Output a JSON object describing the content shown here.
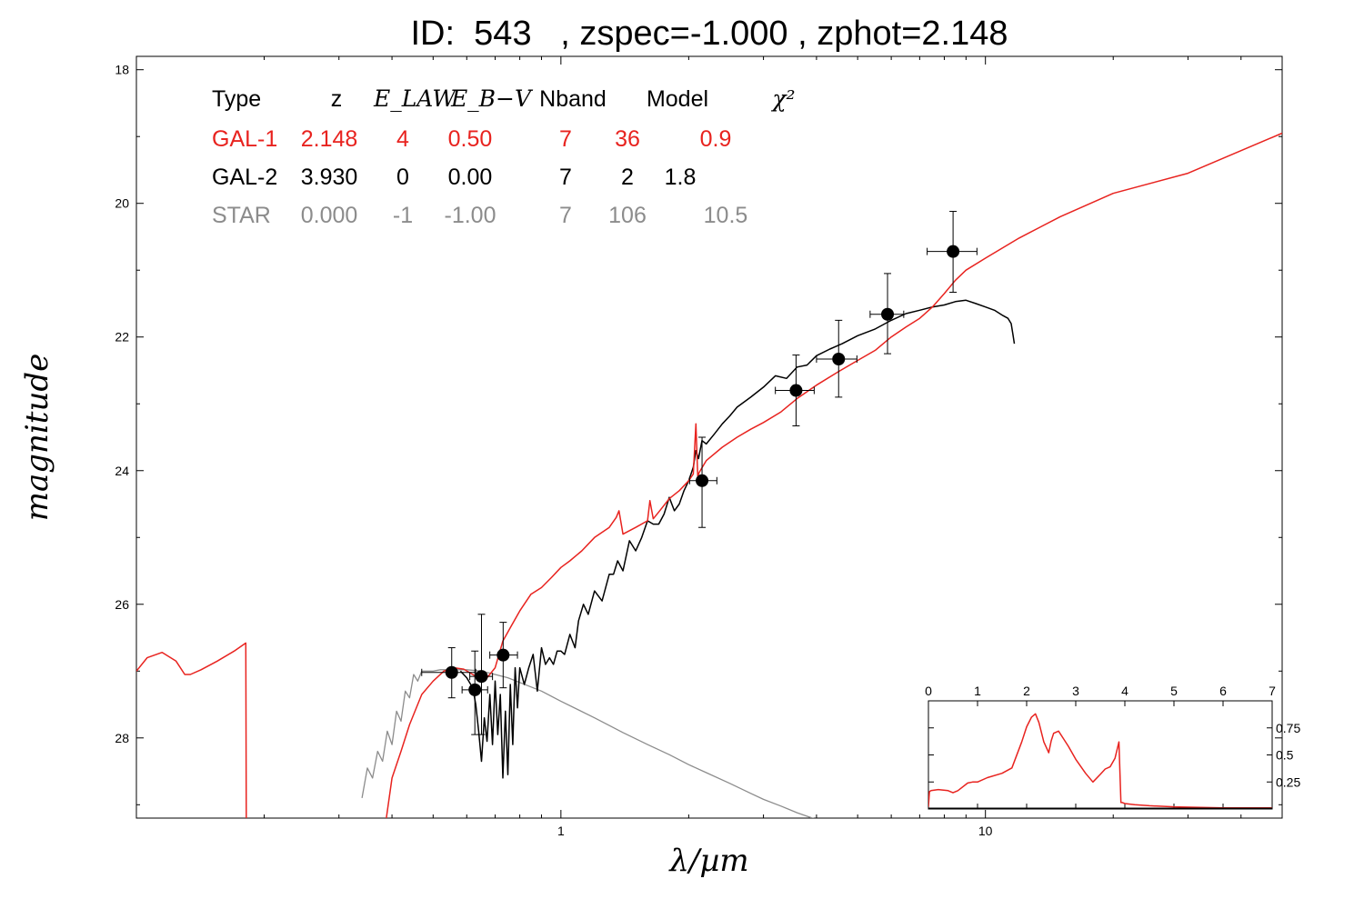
{
  "chart_data": [
    {
      "type": "line",
      "title": "ID:  543   , zspec=-1.000 , zphot=2.148",
      "xlabel": "λ/µm",
      "ylabel": "magnitude",
      "x_scale": "log",
      "xlim": [
        0.1,
        50
      ],
      "ylim": [
        29.2,
        17.8
      ],
      "x_ticks": [
        {
          "value": 1,
          "label": "1"
        },
        {
          "value": 10,
          "label": "10"
        }
      ],
      "y_ticks": [
        {
          "value": 18,
          "label": "18"
        },
        {
          "value": 20,
          "label": "20"
        },
        {
          "value": 22,
          "label": "22"
        },
        {
          "value": 24,
          "label": "24"
        },
        {
          "value": 26,
          "label": "26"
        },
        {
          "value": 28,
          "label": "28"
        }
      ],
      "colors": {
        "gal1": "#e8231f",
        "gal2": "#000000",
        "star": "#8c8c8c"
      },
      "legend": {
        "placement": "top-left",
        "headers": [
          "Type",
          "z",
          "E_LAW",
          "E_B−V",
          "Nband",
          "Model",
          "χ²"
        ],
        "rows": [
          {
            "color": "#e8231f",
            "cells": [
              "GAL-1",
              "2.148",
              "4",
              "0.50",
              "7",
              "36",
              "0.9"
            ]
          },
          {
            "color": "#000000",
            "cells": [
              "GAL-2",
              "3.930",
              "0",
              "0.00",
              "7",
              "2",
              "1.8"
            ]
          },
          {
            "color": "#8c8c8c",
            "cells": [
              "STAR",
              "0.000",
              "-1",
              "-1.00",
              "7",
              "106",
              "10.5"
            ]
          }
        ]
      },
      "points": [
        {
          "x": 0.553,
          "y": 27.02,
          "xerr": [
            0.47,
            0.63
          ],
          "yerr": [
            26.65,
            27.4
          ]
        },
        {
          "x": 0.627,
          "y": 27.28,
          "xerr": [
            0.585,
            0.672
          ],
          "yerr": [
            26.7,
            27.95
          ]
        },
        {
          "x": 0.65,
          "y": 27.08,
          "xerr": [
            0.61,
            0.69
          ],
          "yerr": [
            26.15,
            27.95
          ]
        },
        {
          "x": 0.731,
          "y": 26.76,
          "xerr": [
            0.68,
            0.79
          ],
          "yerr": [
            26.27,
            27.25
          ]
        },
        {
          "x": 2.15,
          "y": 24.15,
          "xerr": [
            2.01,
            2.33
          ],
          "yerr": [
            23.5,
            24.85
          ]
        },
        {
          "x": 3.58,
          "y": 22.8,
          "xerr": [
            3.2,
            3.95
          ],
          "yerr": [
            22.27,
            23.33
          ]
        },
        {
          "x": 4.51,
          "y": 22.33,
          "xerr": [
            4.0,
            4.98
          ],
          "yerr": [
            21.75,
            22.9
          ]
        },
        {
          "x": 5.88,
          "y": 21.66,
          "xerr": [
            5.35,
            6.42
          ],
          "yerr": [
            21.05,
            22.25
          ]
        },
        {
          "x": 8.39,
          "y": 20.72,
          "xerr": [
            7.29,
            9.55
          ],
          "yerr": [
            20.12,
            21.33
          ]
        }
      ],
      "series": [
        {
          "name": "GAL-1",
          "color": "#e8231f",
          "x": [
            0.1,
            0.106,
            0.115,
            0.124,
            0.13,
            0.134,
            0.142,
            0.155,
            0.17,
            0.181,
            0.1815,
            0.182,
            0.38,
            0.4,
            0.42,
            0.44,
            0.47,
            0.5,
            0.53,
            0.56,
            0.59,
            0.62,
            0.66,
            0.7,
            0.73,
            0.76,
            0.8,
            0.85,
            0.9,
            0.95,
            1.0,
            1.05,
            1.12,
            1.2,
            1.3,
            1.35,
            1.37,
            1.4,
            1.5,
            1.6,
            1.62,
            1.65,
            1.7,
            1.8,
            1.9,
            2.0,
            2.05,
            2.08,
            2.1,
            2.12,
            2.2,
            2.4,
            2.6,
            2.8,
            3.0,
            3.3,
            3.6,
            4.0,
            4.5,
            5.0,
            5.5,
            6.0,
            6.5,
            7.0,
            7.5,
            8.0,
            8.5,
            9.0,
            10.0,
            12.0,
            15.0,
            20.0,
            30.0,
            50.0
          ],
          "y": [
            27.0,
            26.8,
            26.72,
            26.85,
            27.05,
            27.05,
            26.98,
            26.85,
            26.7,
            26.58,
            29.5,
            29.8,
            29.6,
            28.6,
            28.2,
            27.8,
            27.35,
            27.15,
            27.0,
            26.95,
            26.97,
            27.05,
            27.15,
            26.95,
            26.55,
            26.35,
            26.1,
            25.85,
            25.75,
            25.6,
            25.45,
            25.35,
            25.2,
            25.0,
            24.85,
            24.7,
            24.6,
            24.95,
            24.85,
            24.75,
            24.45,
            24.72,
            24.62,
            24.42,
            24.3,
            24.15,
            24.05,
            23.3,
            24.08,
            24.02,
            23.85,
            23.65,
            23.5,
            23.38,
            23.28,
            23.12,
            22.92,
            22.72,
            22.52,
            22.35,
            22.2,
            22.0,
            21.85,
            21.72,
            21.55,
            21.35,
            21.15,
            21.0,
            20.82,
            20.52,
            20.2,
            19.85,
            19.55,
            18.95
          ]
        },
        {
          "name": "GAL-2",
          "color": "#000000",
          "x": [
            0.58,
            0.6,
            0.62,
            0.63,
            0.64,
            0.65,
            0.66,
            0.67,
            0.68,
            0.69,
            0.7,
            0.71,
            0.72,
            0.73,
            0.74,
            0.75,
            0.76,
            0.77,
            0.78,
            0.79,
            0.8,
            0.82,
            0.84,
            0.86,
            0.88,
            0.9,
            0.92,
            0.94,
            0.96,
            0.98,
            1.0,
            1.02,
            1.05,
            1.08,
            1.1,
            1.13,
            1.16,
            1.2,
            1.25,
            1.3,
            1.33,
            1.36,
            1.4,
            1.45,
            1.5,
            1.55,
            1.6,
            1.65,
            1.7,
            1.75,
            1.8,
            1.85,
            1.9,
            1.95,
            2.0,
            2.05,
            2.08,
            2.11,
            2.15,
            2.2,
            2.3,
            2.4,
            2.5,
            2.6,
            2.8,
            3.0,
            3.2,
            3.4,
            3.6,
            3.8,
            4.0,
            4.3,
            4.6,
            5.0,
            5.5,
            6.0,
            6.5,
            7.0,
            7.5,
            8.0,
            8.5,
            9.0,
            9.5,
            10.0,
            10.5,
            11.0,
            11.3,
            11.5,
            11.6,
            11.7
          ],
          "y": [
            27.0,
            27.1,
            27.25,
            27.5,
            27.9,
            28.35,
            27.7,
            28.05,
            27.35,
            28.1,
            27.15,
            27.95,
            27.35,
            28.6,
            27.6,
            28.55,
            27.2,
            28.1,
            26.95,
            27.55,
            26.95,
            27.2,
            26.95,
            26.75,
            27.3,
            26.65,
            26.9,
            26.8,
            26.9,
            26.7,
            26.7,
            26.75,
            26.45,
            26.65,
            26.25,
            26.0,
            26.15,
            25.8,
            25.95,
            25.55,
            25.55,
            25.35,
            25.5,
            25.05,
            25.2,
            25.0,
            24.75,
            24.8,
            24.8,
            24.65,
            24.4,
            24.6,
            24.5,
            24.3,
            24.15,
            23.95,
            23.7,
            23.82,
            23.55,
            23.6,
            23.45,
            23.3,
            23.18,
            23.05,
            22.9,
            22.75,
            22.58,
            22.62,
            22.45,
            22.42,
            22.28,
            22.18,
            22.1,
            21.98,
            21.88,
            21.75,
            21.65,
            21.6,
            21.55,
            21.52,
            21.47,
            21.45,
            21.5,
            21.55,
            21.6,
            21.68,
            21.72,
            21.8,
            21.95,
            22.1
          ]
        },
        {
          "name": "STAR",
          "color": "#8c8c8c",
          "x": [
            0.34,
            0.35,
            0.36,
            0.37,
            0.38,
            0.39,
            0.4,
            0.41,
            0.42,
            0.43,
            0.44,
            0.45,
            0.46,
            0.47,
            0.48,
            0.5,
            0.52,
            0.55,
            0.6,
            0.65,
            0.7,
            0.75,
            0.8,
            0.9,
            1.0,
            1.2,
            1.4,
            1.6,
            1.8,
            2.0,
            2.2,
            2.5,
            2.8,
            3.0,
            3.3,
            3.6,
            4.0
          ],
          "y": [
            28.9,
            28.45,
            28.6,
            28.2,
            28.35,
            27.9,
            28.1,
            27.6,
            27.75,
            27.3,
            27.4,
            27.05,
            27.15,
            27.0,
            27.0,
            27.0,
            26.98,
            26.98,
            26.98,
            27.0,
            27.05,
            27.1,
            27.17,
            27.3,
            27.45,
            27.7,
            27.92,
            28.1,
            28.25,
            28.4,
            28.52,
            28.68,
            28.83,
            28.92,
            29.02,
            29.12,
            29.22
          ]
        }
      ]
    },
    {
      "type": "line",
      "title": "",
      "xlim": [
        0,
        7
      ],
      "ylim": [
        0,
        1.0
      ],
      "x_ticks": [
        0,
        1,
        2,
        3,
        4,
        5,
        6,
        7
      ],
      "y_ticks": [
        0.25,
        0.5,
        0.75
      ],
      "color": "#e8231f",
      "x": [
        0.0,
        0.02,
        0.05,
        0.2,
        0.4,
        0.5,
        0.6,
        0.8,
        0.9,
        1.0,
        1.2,
        1.5,
        1.7,
        1.9,
        2.0,
        2.1,
        2.18,
        2.25,
        2.35,
        2.45,
        2.5,
        2.55,
        2.65,
        2.75,
        2.85,
        3.0,
        3.2,
        3.35,
        3.5,
        3.6,
        3.7,
        3.8,
        3.88,
        3.92,
        3.95,
        4.0,
        4.2,
        4.5,
        5.0,
        6.0,
        7.0
      ],
      "y": [
        0.02,
        0.16,
        0.17,
        0.18,
        0.17,
        0.15,
        0.17,
        0.24,
        0.25,
        0.25,
        0.29,
        0.33,
        0.38,
        0.62,
        0.76,
        0.85,
        0.88,
        0.8,
        0.62,
        0.52,
        0.63,
        0.7,
        0.72,
        0.65,
        0.58,
        0.46,
        0.33,
        0.25,
        0.32,
        0.37,
        0.39,
        0.47,
        0.62,
        0.06,
        0.06,
        0.05,
        0.04,
        0.03,
        0.02,
        0.01,
        0.01
      ]
    }
  ]
}
